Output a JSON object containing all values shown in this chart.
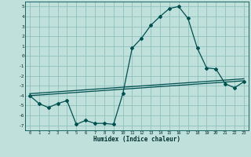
{
  "xlabel": "Humidex (Indice chaleur)",
  "bg_color": "#c0e0dc",
  "grid_color": "#90c0bc",
  "line_color": "#005050",
  "xlim": [
    -0.5,
    23.5
  ],
  "ylim": [
    -7.5,
    5.5
  ],
  "xticks": [
    0,
    1,
    2,
    3,
    4,
    5,
    6,
    7,
    8,
    9,
    10,
    11,
    12,
    13,
    14,
    15,
    16,
    17,
    18,
    19,
    20,
    21,
    22,
    23
  ],
  "yticks": [
    -7,
    -6,
    -5,
    -4,
    -3,
    -2,
    -1,
    0,
    1,
    2,
    3,
    4,
    5
  ],
  "curve1_x": [
    0,
    1,
    2,
    3,
    4,
    5,
    6,
    7,
    8,
    9,
    10,
    11,
    12,
    13,
    14,
    15,
    16,
    17,
    18,
    19,
    20,
    21,
    22,
    23
  ],
  "curve1_y": [
    -4.0,
    -4.8,
    -5.2,
    -4.8,
    -4.5,
    -6.9,
    -6.5,
    -6.8,
    -6.8,
    -6.9,
    -3.8,
    0.8,
    1.8,
    3.1,
    4.0,
    4.8,
    5.0,
    3.8,
    0.8,
    -1.2,
    -1.3,
    -2.8,
    -3.2,
    -2.6
  ],
  "trend1_x": [
    0,
    23
  ],
  "trend1_y": [
    -4.0,
    -2.5
  ],
  "trend2_x": [
    0,
    23
  ],
  "trend2_y": [
    -3.8,
    -2.3
  ]
}
